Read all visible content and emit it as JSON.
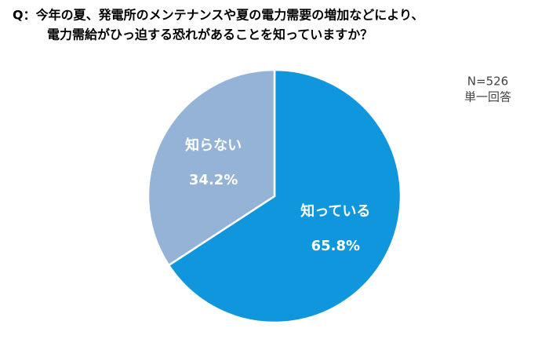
{
  "chart_data": {
    "type": "pie",
    "title": [
      "Q：今年の夏、発電所のメンテナンスや夏の電力需要の増加などにより、",
      "電力需給がひっ迫する恐れがあることを知っていますか？"
    ],
    "annotations": [
      "N=526",
      "単一回答"
    ],
    "categories": [
      "知っている",
      "知らない"
    ],
    "values": [
      65.8,
      34.2
    ],
    "value_labels": [
      "65.8%",
      "34.2%"
    ],
    "colors": [
      "#0f96dc",
      "#94b3d6"
    ]
  }
}
